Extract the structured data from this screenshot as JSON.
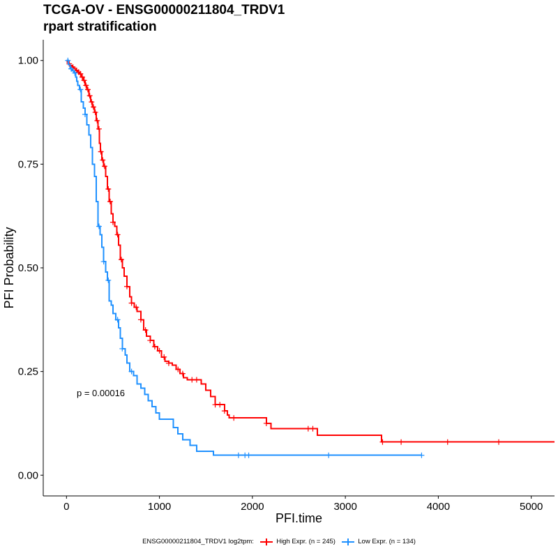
{
  "title": {
    "line1": "TCGA-OV - ENSG00000211804_TRDV1",
    "line2": "rpart stratification"
  },
  "annotation": "p = 0.00016",
  "legend": {
    "title": "ENSG00000211804_TRDV1 log2tpm:",
    "entries": [
      {
        "label": "High Expr. (n = 245)",
        "color": "#ff0000"
      },
      {
        "label": "Low Expr. (n = 134)",
        "color": "#1e90ff"
      }
    ]
  },
  "chart_data": {
    "type": "line",
    "subtype": "kaplan-meier step",
    "xlabel": "PFI.time",
    "ylabel": "PFI Probability",
    "xlim": [
      -250,
      5250
    ],
    "ylim": [
      -0.05,
      1.05
    ],
    "x_ticks": [
      0,
      1000,
      2000,
      3000,
      4000,
      5000
    ],
    "x_tick_labels": [
      "0",
      "1000",
      "2000",
      "3000",
      "4000",
      "5000"
    ],
    "y_ticks": [
      0,
      0.25,
      0.5,
      0.75,
      1.0
    ],
    "y_tick_labels": [
      "0.00",
      "0.25",
      "0.50",
      "0.75",
      "1.00"
    ],
    "grid": false,
    "legend_position": "bottom",
    "series": [
      {
        "name": "High Expr. (n = 245)",
        "color": "#ff0000",
        "points": [
          [
            0,
            1.0
          ],
          [
            10,
            0.996
          ],
          [
            20,
            0.992
          ],
          [
            40,
            0.988
          ],
          [
            60,
            0.984
          ],
          [
            80,
            0.98
          ],
          [
            100,
            0.976
          ],
          [
            120,
            0.972
          ],
          [
            140,
            0.968
          ],
          [
            160,
            0.96
          ],
          [
            180,
            0.952
          ],
          [
            200,
            0.94
          ],
          [
            220,
            0.93
          ],
          [
            240,
            0.915
          ],
          [
            260,
            0.9
          ],
          [
            280,
            0.888
          ],
          [
            300,
            0.875
          ],
          [
            320,
            0.855
          ],
          [
            340,
            0.835
          ],
          [
            355,
            0.8
          ],
          [
            365,
            0.78
          ],
          [
            380,
            0.76
          ],
          [
            400,
            0.745
          ],
          [
            420,
            0.72
          ],
          [
            440,
            0.69
          ],
          [
            460,
            0.66
          ],
          [
            480,
            0.63
          ],
          [
            500,
            0.61
          ],
          [
            520,
            0.6
          ],
          [
            540,
            0.58
          ],
          [
            560,
            0.555
          ],
          [
            580,
            0.52
          ],
          [
            600,
            0.5
          ],
          [
            620,
            0.48
          ],
          [
            650,
            0.455
          ],
          [
            680,
            0.43
          ],
          [
            700,
            0.415
          ],
          [
            730,
            0.405
          ],
          [
            760,
            0.395
          ],
          [
            800,
            0.375
          ],
          [
            830,
            0.35
          ],
          [
            860,
            0.335
          ],
          [
            900,
            0.325
          ],
          [
            940,
            0.31
          ],
          [
            980,
            0.3
          ],
          [
            1020,
            0.285
          ],
          [
            1060,
            0.275
          ],
          [
            1100,
            0.27
          ],
          [
            1140,
            0.265
          ],
          [
            1180,
            0.255
          ],
          [
            1220,
            0.245
          ],
          [
            1260,
            0.235
          ],
          [
            1300,
            0.23
          ],
          [
            1340,
            0.23
          ],
          [
            1400,
            0.23
          ],
          [
            1450,
            0.22
          ],
          [
            1500,
            0.205
          ],
          [
            1550,
            0.19
          ],
          [
            1600,
            0.17
          ],
          [
            1700,
            0.155
          ],
          [
            1730,
            0.145
          ],
          [
            1750,
            0.138
          ],
          [
            2130,
            0.138
          ],
          [
            2150,
            0.125
          ],
          [
            2200,
            0.112
          ],
          [
            2680,
            0.112
          ],
          [
            2700,
            0.096
          ],
          [
            3380,
            0.096
          ],
          [
            3390,
            0.08
          ],
          [
            5250,
            0.08
          ]
        ],
        "censor_x": [
          30,
          70,
          110,
          130,
          150,
          170,
          190,
          210,
          230,
          250,
          270,
          290,
          310,
          330,
          350,
          370,
          390,
          410,
          450,
          470,
          500,
          550,
          590,
          650,
          700,
          750,
          800,
          850,
          900,
          950,
          1000,
          1050,
          1100,
          1200,
          1250,
          1350,
          1400,
          1600,
          1650,
          1700,
          1800,
          2150,
          2600,
          2650,
          3400,
          3600,
          4100,
          4650
        ]
      },
      {
        "name": "Low Expr. (n = 134)",
        "color": "#1e90ff",
        "points": [
          [
            0,
            1.0
          ],
          [
            20,
            0.99
          ],
          [
            40,
            0.98
          ],
          [
            60,
            0.975
          ],
          [
            80,
            0.97
          ],
          [
            100,
            0.96
          ],
          [
            110,
            0.95
          ],
          [
            120,
            0.94
          ],
          [
            140,
            0.93
          ],
          [
            160,
            0.9
          ],
          [
            180,
            0.885
          ],
          [
            200,
            0.87
          ],
          [
            220,
            0.845
          ],
          [
            240,
            0.82
          ],
          [
            260,
            0.79
          ],
          [
            280,
            0.75
          ],
          [
            300,
            0.72
          ],
          [
            320,
            0.66
          ],
          [
            340,
            0.6
          ],
          [
            360,
            0.58
          ],
          [
            380,
            0.55
          ],
          [
            400,
            0.515
          ],
          [
            420,
            0.49
          ],
          [
            440,
            0.47
          ],
          [
            460,
            0.42
          ],
          [
            480,
            0.41
          ],
          [
            500,
            0.39
          ],
          [
            530,
            0.375
          ],
          [
            560,
            0.355
          ],
          [
            580,
            0.33
          ],
          [
            600,
            0.305
          ],
          [
            630,
            0.29
          ],
          [
            650,
            0.27
          ],
          [
            680,
            0.25
          ],
          [
            720,
            0.24
          ],
          [
            760,
            0.22
          ],
          [
            800,
            0.21
          ],
          [
            840,
            0.195
          ],
          [
            880,
            0.18
          ],
          [
            920,
            0.165
          ],
          [
            960,
            0.15
          ],
          [
            1000,
            0.135
          ],
          [
            1150,
            0.115
          ],
          [
            1200,
            0.1
          ],
          [
            1250,
            0.085
          ],
          [
            1330,
            0.072
          ],
          [
            1400,
            0.058
          ],
          [
            1580,
            0.048
          ],
          [
            3820,
            0.048
          ]
        ],
        "censor_x": [
          15,
          50,
          90,
          150,
          200,
          350,
          400,
          450,
          550,
          600,
          700,
          1850,
          1920,
          1960,
          2820,
          3820
        ]
      }
    ]
  }
}
